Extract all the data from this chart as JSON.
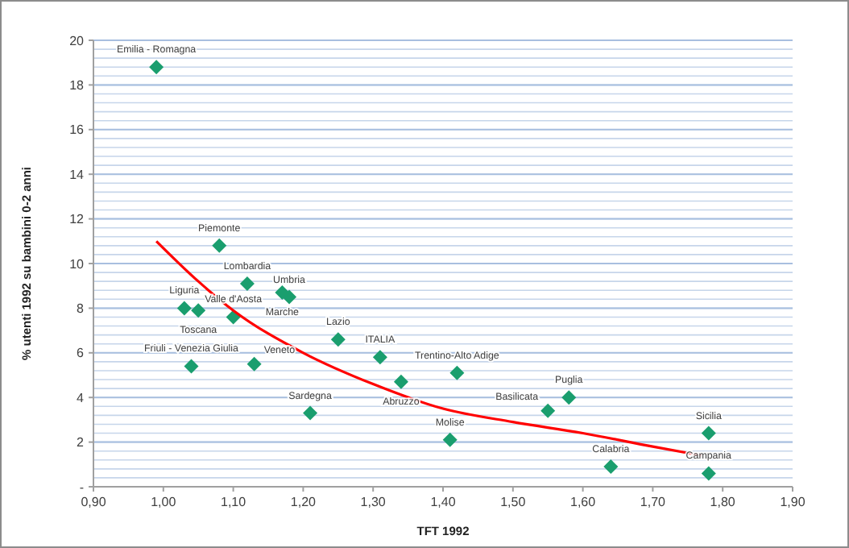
{
  "chart_data": {
    "type": "scatter",
    "xlabel": "TFT 1992",
    "ylabel": "% utenti  1992 su bambini 0-2 anni",
    "xlim": [
      0.9,
      1.9
    ],
    "xticks": [
      {
        "value": 0.9,
        "label": "0,90"
      },
      {
        "value": 1.0,
        "label": "1,00"
      },
      {
        "value": 1.1,
        "label": "1,10"
      },
      {
        "value": 1.2,
        "label": "1,20"
      },
      {
        "value": 1.3,
        "label": "1,30"
      },
      {
        "value": 1.4,
        "label": "1,40"
      },
      {
        "value": 1.5,
        "label": "1,50"
      },
      {
        "value": 1.6,
        "label": "1,60"
      },
      {
        "value": 1.7,
        "label": "1,70"
      },
      {
        "value": 1.8,
        "label": "1,80"
      },
      {
        "value": 1.9,
        "label": "1,90"
      }
    ],
    "ylim": [
      0,
      20
    ],
    "yticks": [
      {
        "value": 0,
        "label": "-"
      },
      2,
      4,
      6,
      8,
      10,
      12,
      14,
      16,
      18,
      20
    ],
    "grid": "y",
    "marker": "diamond",
    "series": [
      {
        "color": "#1a9e6e",
        "x": [
          0.99,
          1.08,
          1.12,
          1.18,
          1.17,
          1.03,
          1.05,
          1.1,
          1.04,
          1.13,
          1.25,
          1.31,
          1.34,
          1.42,
          1.21,
          1.41,
          1.58,
          1.55,
          1.78,
          1.64,
          1.78
        ],
        "values": [
          18.8,
          10.8,
          9.1,
          8.5,
          8.7,
          8.0,
          7.9,
          7.6,
          5.4,
          5.5,
          6.6,
          5.8,
          4.7,
          5.1,
          3.3,
          2.1,
          4.0,
          3.4,
          2.4,
          0.9,
          0.6
        ]
      },
      {
        "type": "line",
        "color": "#ff0000",
        "marker": "none",
        "x": [
          0.99,
          1.05,
          1.1,
          1.2,
          1.3,
          1.4,
          1.5,
          1.6,
          1.7,
          1.77
        ],
        "values": [
          11.0,
          9.2,
          7.9,
          6.0,
          4.6,
          3.5,
          2.9,
          2.4,
          1.8,
          1.4
        ]
      }
    ],
    "annotations": [
      {
        "text": "Emilia - Romagna",
        "x": 0.99,
        "y": 18.8
      },
      {
        "text": "Piemonte",
        "x": 1.08,
        "y": 10.8
      },
      {
        "text": "Lombardia",
        "x": 1.12,
        "y": 9.1
      },
      {
        "text": "Umbria",
        "x": 1.18,
        "y": 8.5
      },
      {
        "text": "Marche",
        "x": 1.17,
        "y": 8.7
      },
      {
        "text": "Liguria",
        "x": 1.03,
        "y": 8.0
      },
      {
        "text": "Toscana",
        "x": 1.05,
        "y": 7.9
      },
      {
        "text": "Valle d'Aosta",
        "x": 1.1,
        "y": 7.6
      },
      {
        "text": "Friuli - Venezia Giulia",
        "x": 1.04,
        "y": 5.4
      },
      {
        "text": "Veneto",
        "x": 1.13,
        "y": 5.5
      },
      {
        "text": "Lazio",
        "x": 1.25,
        "y": 6.6
      },
      {
        "text": "ITALIA",
        "x": 1.31,
        "y": 5.8
      },
      {
        "text": "Abruzzo",
        "x": 1.34,
        "y": 4.7
      },
      {
        "text": "Trentino-Alto  Adige",
        "x": 1.42,
        "y": 5.1
      },
      {
        "text": "Sardegna",
        "x": 1.21,
        "y": 3.3
      },
      {
        "text": "Molise",
        "x": 1.41,
        "y": 2.1
      },
      {
        "text": "Puglia",
        "x": 1.58,
        "y": 4.0
      },
      {
        "text": "Basilicata",
        "x": 1.55,
        "y": 3.4
      },
      {
        "text": "Sicilia",
        "x": 1.78,
        "y": 2.4
      },
      {
        "text": "Calabria",
        "x": 1.64,
        "y": 0.9
      },
      {
        "text": "Campania",
        "x": 1.78,
        "y": 0.6
      }
    ]
  }
}
